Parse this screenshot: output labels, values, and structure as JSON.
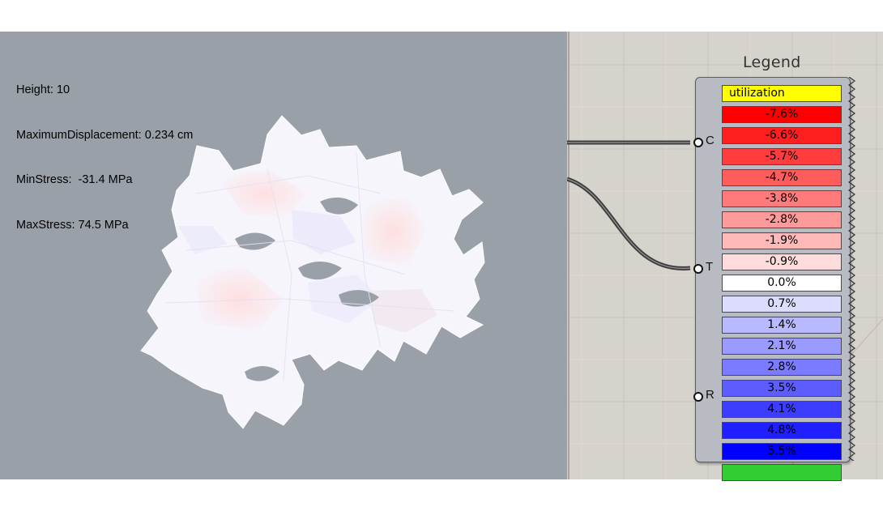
{
  "viewport": {
    "info_lines": [
      "Height: 10",
      "MaximumDisplacement: 0.234 cm",
      "MinStress:  -31.4 MPa",
      "MaxStress: 74.5 MPa"
    ]
  },
  "legend": {
    "title": "Legend",
    "ports": [
      "C",
      "T",
      "R"
    ],
    "header_label": "utilization",
    "header_color": "#ffff00",
    "entries": [
      {
        "label": "-7.6%",
        "color": "#ff0000"
      },
      {
        "label": "-6.6%",
        "color": "#ff1f1f"
      },
      {
        "label": "-5.7%",
        "color": "#ff3d3d"
      },
      {
        "label": "-4.7%",
        "color": "#ff5c5c"
      },
      {
        "label": "-3.8%",
        "color": "#ff7b7b"
      },
      {
        "label": "-2.8%",
        "color": "#ff9a9a"
      },
      {
        "label": "-1.9%",
        "color": "#ffb9b9"
      },
      {
        "label": "-0.9%",
        "color": "#ffdcdc"
      },
      {
        "label": "0.0%",
        "color": "#ffffff"
      },
      {
        "label": "0.7%",
        "color": "#dcdcff"
      },
      {
        "label": "1.4%",
        "color": "#b9b9ff"
      },
      {
        "label": "2.1%",
        "color": "#9a9aff"
      },
      {
        "label": "2.8%",
        "color": "#7b7bff"
      },
      {
        "label": "3.5%",
        "color": "#5c5cff"
      },
      {
        "label": "4.1%",
        "color": "#3d3dff"
      },
      {
        "label": "4.8%",
        "color": "#1f1fff"
      },
      {
        "label": "5.5%",
        "color": "#0000ff"
      }
    ],
    "footer_color": "#33cc33"
  }
}
